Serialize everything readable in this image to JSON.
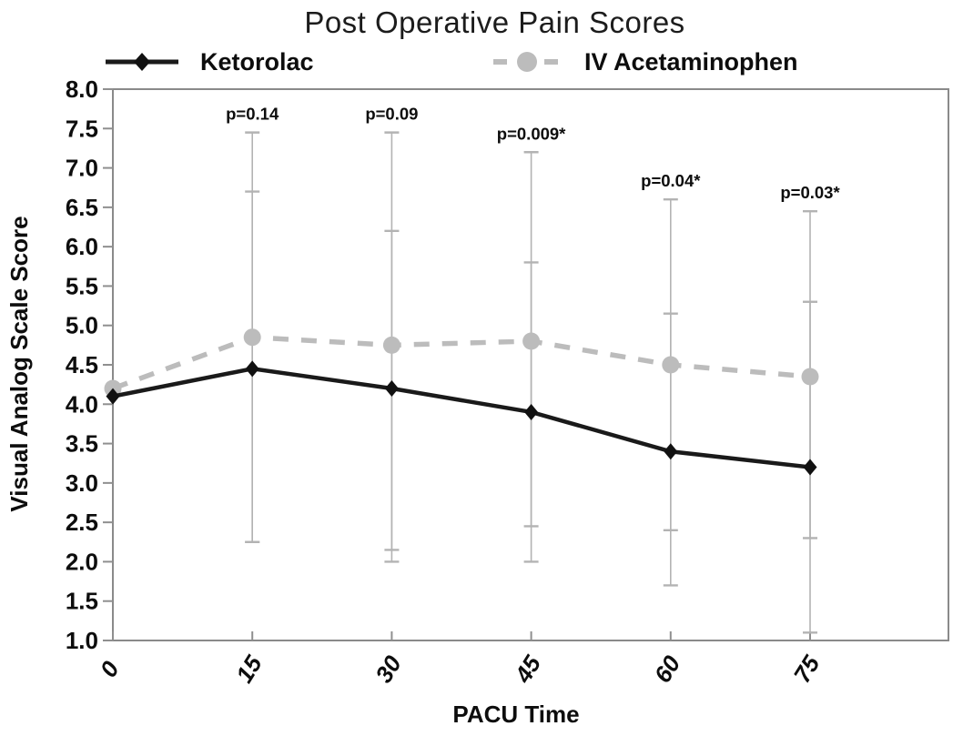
{
  "figure": {
    "title_note": "single line chart figure"
  },
  "chart_data": {
    "type": "line",
    "title": "Post Operative Pain Scores",
    "xlabel": "PACU Time",
    "ylabel": "Visual Analog Scale Score",
    "x": [
      0,
      15,
      30,
      45,
      60,
      75
    ],
    "xticklabels": [
      "0",
      "15",
      "30",
      "45",
      "60",
      "75"
    ],
    "xtick_rotation": 60,
    "ylim": [
      1.0,
      8.0
    ],
    "yticks": [
      "8.0",
      "7.5",
      "7.0",
      "6.5",
      "6.0",
      "5.5",
      "5.0",
      "4.5",
      "4.0",
      "3.5",
      "3.0",
      "2.5",
      "2.0",
      "1.5",
      "1.0"
    ],
    "grid": false,
    "legend_position": "top",
    "series": [
      {
        "name": "Ketorolac",
        "line_style": "solid",
        "marker": "diamond",
        "color": "#1a1a1a",
        "values": [
          4.1,
          4.45,
          4.2,
          3.9,
          3.4,
          3.2
        ],
        "error_upper": [
          null,
          6.7,
          6.2,
          5.8,
          5.15,
          5.3
        ],
        "error_lower": [
          null,
          2.25,
          2.15,
          2.0,
          1.7,
          1.1
        ]
      },
      {
        "name": "IV Acetaminophen",
        "line_style": "dashed",
        "marker": "circle",
        "color": "#bcbcbc",
        "values": [
          4.2,
          4.85,
          4.75,
          4.8,
          4.5,
          4.35
        ],
        "error_upper": [
          null,
          7.45,
          7.45,
          7.2,
          6.6,
          6.45
        ],
        "error_lower": [
          null,
          2.25,
          2.0,
          2.45,
          2.4,
          2.3
        ]
      }
    ],
    "annotations": [
      {
        "x": 15,
        "label": "p=0.14"
      },
      {
        "x": 30,
        "label": "p=0.09"
      },
      {
        "x": 45,
        "label": "p=0.009*"
      },
      {
        "x": 60,
        "label": "p=0.04*"
      },
      {
        "x": 75,
        "label": "p=0.03*"
      }
    ],
    "colors": {
      "error_bar": "#b3b3b3",
      "axis_border": "#8a8a8a",
      "tick": "#8f8f8f",
      "text": "#0d0d0d"
    }
  }
}
